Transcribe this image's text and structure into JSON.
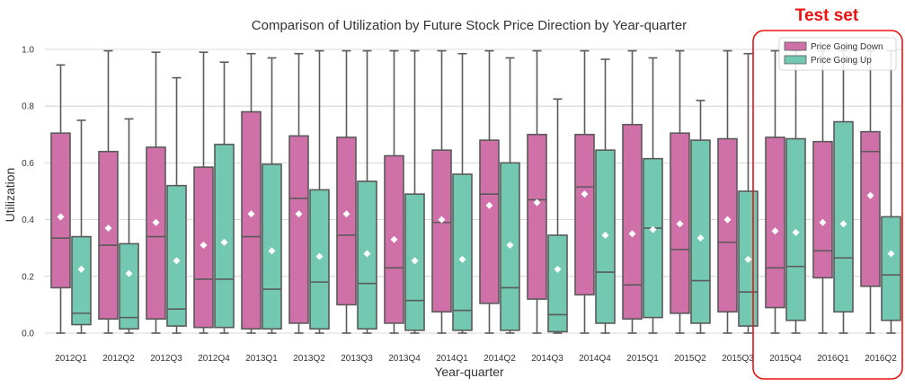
{
  "chart_data": {
    "type": "box",
    "title": "Comparison of Utilization by Future Stock Price Direction by Year-quarter",
    "xlabel": "Year-quarter",
    "ylabel": "Utilization",
    "ylim": [
      0,
      1.0
    ],
    "yticks": [
      "0.0",
      "0.2",
      "0.4",
      "0.6",
      "0.8",
      "1.0"
    ],
    "grid": "horizontal",
    "legend_position": "top-right",
    "categories": [
      "2012Q1",
      "2012Q2",
      "2012Q3",
      "2012Q4",
      "2013Q1",
      "2013Q2",
      "2013Q3",
      "2013Q4",
      "2014Q1",
      "2014Q2",
      "2014Q3",
      "2014Q4",
      "2015Q1",
      "2015Q2",
      "2015Q3",
      "2015Q4",
      "2016Q1",
      "2016Q2"
    ],
    "annotation": {
      "text": "Test set",
      "color": "#ee1111",
      "categories": [
        "2015Q4",
        "2016Q1",
        "2016Q2"
      ]
    },
    "series": [
      {
        "name": "Price Going Down",
        "color": "#d070a8",
        "boxes": [
          {
            "min": 0.0,
            "q1": 0.16,
            "median": 0.335,
            "q3": 0.705,
            "max": 0.945,
            "mean": 0.41
          },
          {
            "min": 0.0,
            "q1": 0.05,
            "median": 0.31,
            "q3": 0.64,
            "max": 0.995,
            "mean": 0.37
          },
          {
            "min": 0.0,
            "q1": 0.05,
            "median": 0.34,
            "q3": 0.655,
            "max": 0.99,
            "mean": 0.39
          },
          {
            "min": 0.0,
            "q1": 0.02,
            "median": 0.19,
            "q3": 0.585,
            "max": 0.99,
            "mean": 0.31
          },
          {
            "min": 0.0,
            "q1": 0.015,
            "median": 0.34,
            "q3": 0.78,
            "max": 0.985,
            "mean": 0.42
          },
          {
            "min": 0.0,
            "q1": 0.035,
            "median": 0.475,
            "q3": 0.695,
            "max": 0.985,
            "mean": 0.42
          },
          {
            "min": 0.0,
            "q1": 0.1,
            "median": 0.345,
            "q3": 0.69,
            "max": 0.995,
            "mean": 0.42
          },
          {
            "min": 0.0,
            "q1": 0.035,
            "median": 0.23,
            "q3": 0.625,
            "max": 0.995,
            "mean": 0.33
          },
          {
            "min": 0.0,
            "q1": 0.075,
            "median": 0.39,
            "q3": 0.645,
            "max": 0.995,
            "mean": 0.4
          },
          {
            "min": 0.0,
            "q1": 0.105,
            "median": 0.49,
            "q3": 0.68,
            "max": 0.995,
            "mean": 0.45
          },
          {
            "min": 0.0,
            "q1": 0.12,
            "median": 0.47,
            "q3": 0.7,
            "max": 0.995,
            "mean": 0.46
          },
          {
            "min": 0.0,
            "q1": 0.135,
            "median": 0.515,
            "q3": 0.7,
            "max": 0.995,
            "mean": 0.49
          },
          {
            "min": 0.0,
            "q1": 0.05,
            "median": 0.17,
            "q3": 0.735,
            "max": 0.995,
            "mean": 0.35
          },
          {
            "min": 0.0,
            "q1": 0.07,
            "median": 0.295,
            "q3": 0.705,
            "max": 0.995,
            "mean": 0.385
          },
          {
            "min": 0.0,
            "q1": 0.075,
            "median": 0.32,
            "q3": 0.685,
            "max": 0.995,
            "mean": 0.4
          },
          {
            "min": 0.0,
            "q1": 0.09,
            "median": 0.23,
            "q3": 0.69,
            "max": 0.995,
            "mean": 0.36
          },
          {
            "min": 0.0,
            "q1": 0.195,
            "median": 0.29,
            "q3": 0.675,
            "max": 0.995,
            "mean": 0.39
          },
          {
            "min": 0.0,
            "q1": 0.165,
            "median": 0.64,
            "q3": 0.71,
            "max": 0.995,
            "mean": 0.485
          }
        ]
      },
      {
        "name": "Price Going Up",
        "color": "#72c8b0",
        "boxes": [
          {
            "min": 0.0,
            "q1": 0.03,
            "median": 0.07,
            "q3": 0.34,
            "max": 0.75,
            "mean": 0.225
          },
          {
            "min": 0.0,
            "q1": 0.015,
            "median": 0.055,
            "q3": 0.315,
            "max": 0.755,
            "mean": 0.21
          },
          {
            "min": 0.0,
            "q1": 0.025,
            "median": 0.085,
            "q3": 0.52,
            "max": 0.9,
            "mean": 0.255
          },
          {
            "min": 0.0,
            "q1": 0.02,
            "median": 0.19,
            "q3": 0.665,
            "max": 0.955,
            "mean": 0.32
          },
          {
            "min": 0.0,
            "q1": 0.015,
            "median": 0.155,
            "q3": 0.595,
            "max": 0.97,
            "mean": 0.29
          },
          {
            "min": 0.0,
            "q1": 0.015,
            "median": 0.18,
            "q3": 0.505,
            "max": 0.995,
            "mean": 0.27
          },
          {
            "min": 0.0,
            "q1": 0.015,
            "median": 0.175,
            "q3": 0.535,
            "max": 0.995,
            "mean": 0.28
          },
          {
            "min": 0.0,
            "q1": 0.01,
            "median": 0.115,
            "q3": 0.49,
            "max": 0.995,
            "mean": 0.255
          },
          {
            "min": 0.0,
            "q1": 0.01,
            "median": 0.08,
            "q3": 0.56,
            "max": 0.985,
            "mean": 0.26
          },
          {
            "min": 0.0,
            "q1": 0.01,
            "median": 0.16,
            "q3": 0.6,
            "max": 0.97,
            "mean": 0.31
          },
          {
            "min": 0.0,
            "q1": 0.005,
            "median": 0.065,
            "q3": 0.345,
            "max": 0.825,
            "mean": 0.225
          },
          {
            "min": 0.0,
            "q1": 0.035,
            "median": 0.215,
            "q3": 0.645,
            "max": 0.965,
            "mean": 0.345
          },
          {
            "min": 0.0,
            "q1": 0.055,
            "median": 0.37,
            "q3": 0.615,
            "max": 0.97,
            "mean": 0.365
          },
          {
            "min": 0.0,
            "q1": 0.035,
            "median": 0.185,
            "q3": 0.68,
            "max": 0.82,
            "mean": 0.335
          },
          {
            "min": 0.0,
            "q1": 0.025,
            "median": 0.145,
            "q3": 0.5,
            "max": 0.985,
            "mean": 0.26
          },
          {
            "min": 0.0,
            "q1": 0.045,
            "median": 0.235,
            "q3": 0.685,
            "max": 0.995,
            "mean": 0.355
          },
          {
            "min": 0.0,
            "q1": 0.075,
            "median": 0.265,
            "q3": 0.745,
            "max": 0.995,
            "mean": 0.385
          },
          {
            "min": 0.0,
            "q1": 0.045,
            "median": 0.205,
            "q3": 0.41,
            "max": 0.995,
            "mean": 0.28
          }
        ]
      }
    ]
  }
}
